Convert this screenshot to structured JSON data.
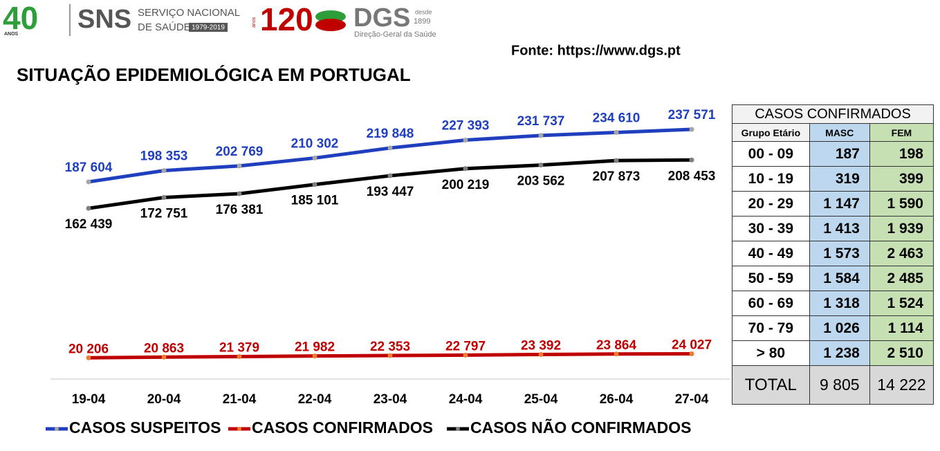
{
  "header": {
    "logos": {
      "sns_years": "40",
      "sns_anos": "ANOS",
      "sns": "SNS",
      "sns_name_1": "SERVIÇO NACIONAL",
      "sns_name_2": "DE SAÚDE",
      "sns_period": "1979-2019",
      "dgs_years": "120",
      "dgs_anos": "anos",
      "dgs": "DGS",
      "dgs_since_1": "desde",
      "dgs_since_2": "1899",
      "dgs_name": "Direção-Geral da Saúde"
    },
    "source": "Fonte: https://www.dgs.pt"
  },
  "chart_data": {
    "type": "line",
    "title": "SITUAÇÃO EPIDEMIOLÓGICA EM PORTUGAL",
    "categories": [
      "19-04",
      "20-04",
      "21-04",
      "22-04",
      "23-04",
      "24-04",
      "25-04",
      "26-04",
      "27-04"
    ],
    "series": [
      {
        "name": "CASOS SUSPEITOS",
        "color": "#1f3fbf",
        "marker_color": "#a6a6a6",
        "values": [
          187604,
          198353,
          202769,
          210302,
          219848,
          227393,
          231737,
          234610,
          237571
        ],
        "value_labels": [
          "187 604",
          "198 353",
          "202 769",
          "210 302",
          "219 848",
          "227 393",
          "231 737",
          "234 610",
          "237 571"
        ]
      },
      {
        "name": "CASOS CONFIRMADOS",
        "color": "#c00000",
        "marker_color": "#ed7d31",
        "values": [
          20206,
          20863,
          21379,
          21982,
          22353,
          22797,
          23392,
          23864,
          24027
        ],
        "value_labels": [
          "20 206",
          "20 863",
          "21 379",
          "21 982",
          "22 353",
          "22 797",
          "23 392",
          "23 864",
          "24 027"
        ]
      },
      {
        "name": "CASOS NÃO CONFIRMADOS",
        "color": "#000000",
        "marker_color": "#808080",
        "values": [
          162439,
          172751,
          176381,
          185101,
          193447,
          200219,
          203562,
          207873,
          208453
        ],
        "value_labels": [
          "162 439",
          "172 751",
          "176 381",
          "185 101",
          "193 447",
          "200 219",
          "203 562",
          "207 873",
          "208 453"
        ]
      }
    ],
    "legend": "bottom"
  },
  "table": {
    "title": "CASOS CONFIRMADOS",
    "header": [
      "Grupo Etário",
      "MASC",
      "FEM"
    ],
    "rows": [
      [
        "00 - 09",
        "187",
        "198"
      ],
      [
        "10 - 19",
        "319",
        "399"
      ],
      [
        "20 - 29",
        "1 147",
        "1 590"
      ],
      [
        "30 - 39",
        "1 413",
        "1 939"
      ],
      [
        "40 - 49",
        "1 573",
        "2 463"
      ],
      [
        "50 - 59",
        "1 584",
        "2 485"
      ],
      [
        "60 - 69",
        "1 318",
        "1 524"
      ],
      [
        "70 - 79",
        "1 026",
        "1 114"
      ],
      [
        "> 80",
        "1 238",
        "2 510"
      ]
    ],
    "total": [
      "TOTAL",
      "9 805",
      "14 222"
    ]
  }
}
